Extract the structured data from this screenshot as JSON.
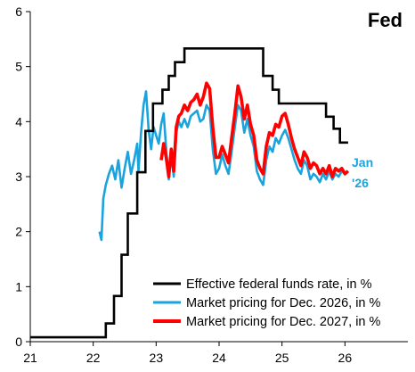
{
  "chart_data": {
    "type": "line",
    "title": "Fed",
    "xlabel": "",
    "ylabel": "",
    "xlim": [
      21,
      27
    ],
    "ylim": [
      0,
      6
    ],
    "x_tick_labels": [
      "21",
      "22",
      "23",
      "24",
      "25",
      "26"
    ],
    "y_tick_labels": [
      "0",
      "1",
      "2",
      "3",
      "4",
      "5",
      "6"
    ],
    "grid": false,
    "legend_position": "bottom-right",
    "annotation": {
      "lines": [
        "Jan",
        "'26"
      ],
      "color": "#1aa3dd"
    },
    "series": [
      {
        "name": "Effective federal funds rate, in %",
        "color": "#000000",
        "step": true,
        "points": [
          [
            21.0,
            0.08
          ],
          [
            22.2,
            0.08
          ],
          [
            22.2,
            0.33
          ],
          [
            22.33,
            0.33
          ],
          [
            22.33,
            0.83
          ],
          [
            22.45,
            0.83
          ],
          [
            22.45,
            1.58
          ],
          [
            22.55,
            1.58
          ],
          [
            22.55,
            2.33
          ],
          [
            22.7,
            2.33
          ],
          [
            22.7,
            3.08
          ],
          [
            22.83,
            3.08
          ],
          [
            22.83,
            3.83
          ],
          [
            22.95,
            3.83
          ],
          [
            22.95,
            4.33
          ],
          [
            23.1,
            4.33
          ],
          [
            23.1,
            4.58
          ],
          [
            23.2,
            4.58
          ],
          [
            23.2,
            4.83
          ],
          [
            23.3,
            4.83
          ],
          [
            23.3,
            5.08
          ],
          [
            23.45,
            5.08
          ],
          [
            23.45,
            5.33
          ],
          [
            24.7,
            5.33
          ],
          [
            24.7,
            4.83
          ],
          [
            24.85,
            4.83
          ],
          [
            24.85,
            4.58
          ],
          [
            24.95,
            4.58
          ],
          [
            24.95,
            4.33
          ],
          [
            25.7,
            4.33
          ],
          [
            25.7,
            4.09
          ],
          [
            25.82,
            4.09
          ],
          [
            25.82,
            3.87
          ],
          [
            25.92,
            3.87
          ],
          [
            25.92,
            3.62
          ],
          [
            26.05,
            3.62
          ]
        ]
      },
      {
        "name": "Market pricing for Dec. 2026, in %",
        "color": "#1aa3dd",
        "points": [
          [
            22.1,
            2.0
          ],
          [
            22.13,
            1.85
          ],
          [
            22.16,
            2.6
          ],
          [
            22.2,
            2.85
          ],
          [
            22.25,
            3.05
          ],
          [
            22.3,
            3.2
          ],
          [
            22.35,
            2.95
          ],
          [
            22.4,
            3.3
          ],
          [
            22.45,
            2.8
          ],
          [
            22.5,
            3.15
          ],
          [
            22.55,
            3.45
          ],
          [
            22.6,
            3.05
          ],
          [
            22.65,
            3.3
          ],
          [
            22.7,
            3.6
          ],
          [
            22.72,
            3.1
          ],
          [
            22.76,
            3.8
          ],
          [
            22.8,
            4.3
          ],
          [
            22.84,
            4.55
          ],
          [
            22.88,
            3.85
          ],
          [
            22.92,
            3.5
          ],
          [
            22.96,
            3.9
          ],
          [
            23.0,
            3.75
          ],
          [
            23.04,
            3.6
          ],
          [
            23.08,
            3.95
          ],
          [
            23.12,
            4.15
          ],
          [
            23.16,
            3.5
          ],
          [
            23.2,
            2.95
          ],
          [
            23.24,
            3.4
          ],
          [
            23.28,
            3.0
          ],
          [
            23.32,
            3.8
          ],
          [
            23.36,
            4.0
          ],
          [
            23.4,
            3.9
          ],
          [
            23.45,
            4.05
          ],
          [
            23.5,
            3.9
          ],
          [
            23.55,
            4.1
          ],
          [
            23.6,
            4.15
          ],
          [
            23.65,
            4.2
          ],
          [
            23.7,
            4.0
          ],
          [
            23.75,
            4.05
          ],
          [
            23.8,
            4.3
          ],
          [
            23.85,
            4.2
          ],
          [
            23.9,
            3.5
          ],
          [
            23.95,
            3.05
          ],
          [
            24.0,
            3.15
          ],
          [
            24.05,
            3.4
          ],
          [
            24.1,
            3.2
          ],
          [
            24.15,
            3.05
          ],
          [
            24.2,
            3.45
          ],
          [
            24.25,
            3.9
          ],
          [
            24.3,
            4.3
          ],
          [
            24.35,
            4.2
          ],
          [
            24.4,
            3.8
          ],
          [
            24.45,
            4.05
          ],
          [
            24.5,
            3.75
          ],
          [
            24.55,
            3.55
          ],
          [
            24.6,
            3.1
          ],
          [
            24.65,
            2.95
          ],
          [
            24.7,
            2.85
          ],
          [
            24.75,
            3.3
          ],
          [
            24.8,
            3.55
          ],
          [
            24.85,
            3.45
          ],
          [
            24.9,
            3.7
          ],
          [
            24.95,
            3.6
          ],
          [
            25.0,
            3.75
          ],
          [
            25.05,
            3.85
          ],
          [
            25.1,
            3.7
          ],
          [
            25.15,
            3.5
          ],
          [
            25.2,
            3.3
          ],
          [
            25.25,
            3.15
          ],
          [
            25.3,
            3.05
          ],
          [
            25.35,
            3.3
          ],
          [
            25.4,
            3.2
          ],
          [
            25.45,
            2.95
          ],
          [
            25.5,
            3.05
          ],
          [
            25.55,
            3.0
          ],
          [
            25.6,
            2.9
          ],
          [
            25.65,
            3.05
          ],
          [
            25.7,
            2.95
          ],
          [
            25.75,
            3.1
          ],
          [
            25.8,
            2.95
          ],
          [
            25.85,
            3.05
          ],
          [
            25.9,
            3.0
          ],
          [
            25.95,
            3.1
          ],
          [
            26.0,
            3.05
          ],
          [
            26.05,
            3.1
          ]
        ]
      },
      {
        "name": "Market pricing for Dec. 2027, in %",
        "color": "#ff0000",
        "points": [
          [
            23.08,
            3.3
          ],
          [
            23.12,
            3.6
          ],
          [
            23.16,
            3.35
          ],
          [
            23.2,
            3.0
          ],
          [
            23.24,
            3.5
          ],
          [
            23.28,
            3.1
          ],
          [
            23.32,
            3.9
          ],
          [
            23.36,
            4.1
          ],
          [
            23.4,
            4.15
          ],
          [
            23.45,
            4.3
          ],
          [
            23.5,
            4.2
          ],
          [
            23.55,
            4.35
          ],
          [
            23.6,
            4.4
          ],
          [
            23.65,
            4.5
          ],
          [
            23.7,
            4.3
          ],
          [
            23.75,
            4.45
          ],
          [
            23.8,
            4.7
          ],
          [
            23.85,
            4.6
          ],
          [
            23.9,
            3.9
          ],
          [
            23.95,
            3.35
          ],
          [
            24.0,
            3.35
          ],
          [
            24.05,
            3.55
          ],
          [
            24.1,
            3.4
          ],
          [
            24.15,
            3.25
          ],
          [
            24.2,
            3.7
          ],
          [
            24.25,
            4.15
          ],
          [
            24.3,
            4.65
          ],
          [
            24.35,
            4.45
          ],
          [
            24.4,
            4.05
          ],
          [
            24.45,
            4.3
          ],
          [
            24.5,
            3.95
          ],
          [
            24.55,
            3.75
          ],
          [
            24.6,
            3.3
          ],
          [
            24.65,
            3.15
          ],
          [
            24.7,
            3.05
          ],
          [
            24.75,
            3.55
          ],
          [
            24.8,
            3.8
          ],
          [
            24.85,
            3.75
          ],
          [
            24.9,
            3.95
          ],
          [
            24.95,
            3.9
          ],
          [
            25.0,
            4.1
          ],
          [
            25.05,
            4.15
          ],
          [
            25.1,
            3.95
          ],
          [
            25.15,
            3.7
          ],
          [
            25.2,
            3.5
          ],
          [
            25.25,
            3.35
          ],
          [
            25.3,
            3.2
          ],
          [
            25.35,
            3.45
          ],
          [
            25.4,
            3.35
          ],
          [
            25.45,
            3.15
          ],
          [
            25.5,
            3.25
          ],
          [
            25.55,
            3.2
          ],
          [
            25.6,
            3.05
          ],
          [
            25.65,
            3.15
          ],
          [
            25.7,
            3.05
          ],
          [
            25.75,
            3.2
          ],
          [
            25.8,
            3.0
          ],
          [
            25.85,
            3.15
          ],
          [
            25.9,
            3.1
          ],
          [
            25.95,
            3.15
          ],
          [
            26.0,
            3.05
          ],
          [
            26.05,
            3.1
          ]
        ]
      }
    ]
  },
  "colors": {
    "funds_rate": "#000000",
    "dec2026": "#1aa3dd",
    "dec2027": "#ff0000"
  }
}
